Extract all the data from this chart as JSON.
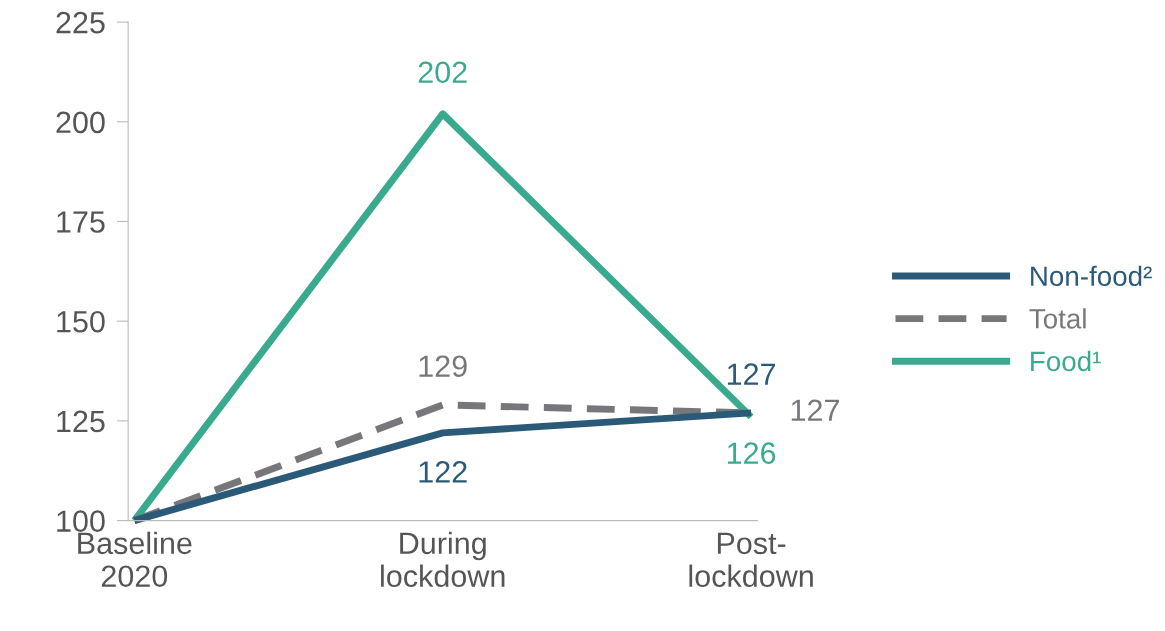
{
  "chart_data": {
    "type": "line",
    "categories": [
      "Baseline\n2020",
      "During\nlockdown",
      "Post-\nlockdown"
    ],
    "series": [
      {
        "name": "Non-food²",
        "color": "#2b5a78",
        "values": [
          100,
          122,
          127
        ],
        "value_labels": [
          null,
          "122",
          "127"
        ]
      },
      {
        "name": "Total",
        "color": "#77777b",
        "values": [
          100,
          129,
          127
        ],
        "value_labels": [
          null,
          "129",
          "127"
        ],
        "line_style": "dashed"
      },
      {
        "name": "Food¹",
        "color": "#3aaa8e",
        "values": [
          100,
          202,
          126
        ],
        "value_labels": [
          null,
          "202",
          "126"
        ]
      }
    ],
    "ylim": [
      100,
      225
    ],
    "yticks": [
      100,
      125,
      150,
      175,
      200,
      225
    ],
    "grid": false,
    "legend": "right",
    "marker": "none"
  }
}
